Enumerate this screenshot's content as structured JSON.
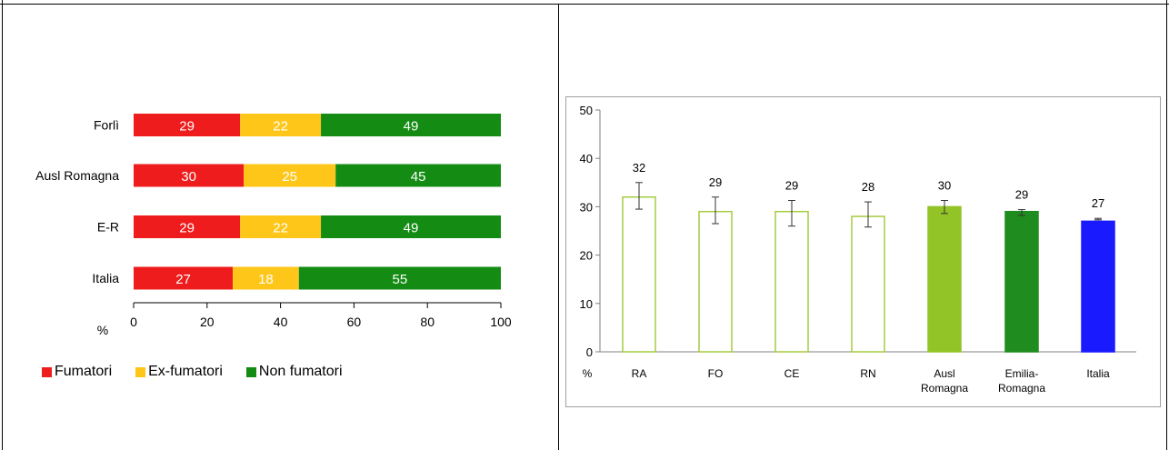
{
  "colors": {
    "fumatori": "#ee1c1c",
    "ex_fumatori": "#ffc61a",
    "non_fumatori": "#148c14",
    "bar_outline": "#a6cc40",
    "ausl_fill": "#92c427",
    "emilia_fill": "#1f8c1f",
    "italia_fill": "#1a1aff"
  },
  "left_chart": {
    "axis_unit": "%",
    "legend": [
      "Fumatori",
      "Ex-fumatori",
      "Non fumatori"
    ]
  },
  "right_chart": {
    "axis_unit": "%"
  },
  "chart_data": [
    {
      "type": "bar",
      "orientation": "horizontal",
      "stacked": true,
      "categories": [
        "Forlì",
        "Ausl Romagna",
        "E-R",
        "Italia"
      ],
      "series": [
        {
          "name": "Fumatori",
          "values": [
            29,
            30,
            29,
            27
          ]
        },
        {
          "name": "Ex-fumatori",
          "values": [
            22,
            25,
            22,
            18
          ]
        },
        {
          "name": "Non fumatori",
          "values": [
            49,
            45,
            49,
            55
          ]
        }
      ],
      "xlim": [
        0,
        100
      ],
      "xticks": [
        0,
        20,
        40,
        60,
        80,
        100
      ],
      "xlabel": "%",
      "legend_position": "bottom"
    },
    {
      "type": "bar",
      "categories": [
        "RA",
        "FO",
        "CE",
        "RN",
        "Ausl Romagna",
        "Emilia-Romagna",
        "Italia"
      ],
      "category_lines": [
        [
          "RA"
        ],
        [
          "FO"
        ],
        [
          "CE"
        ],
        [
          "RN"
        ],
        [
          "Ausl",
          "Romagna"
        ],
        [
          "Emilia-",
          "Romagna"
        ],
        [
          "Italia"
        ]
      ],
      "values": [
        32,
        29,
        29,
        28,
        30,
        29,
        27
      ],
      "error_low": [
        29.5,
        26.5,
        26,
        25.8,
        28.6,
        28.2,
        27.3
      ],
      "error_high": [
        35,
        32,
        31.3,
        31,
        31.3,
        29.4,
        27.6
      ],
      "ylim": [
        0,
        50
      ],
      "yticks": [
        0,
        10,
        20,
        30,
        40,
        50
      ],
      "ylabel": "%"
    }
  ]
}
